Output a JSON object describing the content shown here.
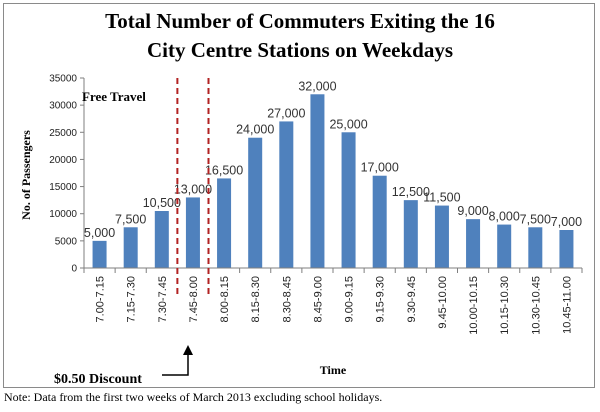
{
  "chart_data": {
    "type": "bar",
    "title_lines": [
      "Total Number of Commuters Exiting the 16",
      "City Centre Stations on Weekdays"
    ],
    "xlabel": "Time",
    "ylabel": "No. of Passengers",
    "ylim": [
      0,
      35000
    ],
    "yticks": [
      "0",
      "5000",
      "10000",
      "15000",
      "20000",
      "25000",
      "30000",
      "35000"
    ],
    "grid": false,
    "categories": [
      "7.00-7.15",
      "7.15-7.30",
      "7.30-7.45",
      "7.45-8.00",
      "8.00-8.15",
      "8.15-8.30",
      "8.30-8.45",
      "8.45-9.00",
      "9.00-9.15",
      "9.15-9.30",
      "9.30-9.45",
      "9.45-10.00",
      "10.00-10.15",
      "10.15-10.30",
      "10.30-10.45",
      "10.45-11.00"
    ],
    "values": [
      5000,
      7500,
      10500,
      13000,
      16500,
      24000,
      27000,
      32000,
      25000,
      17000,
      12500,
      11500,
      9000,
      8000,
      7500,
      7000
    ],
    "data_labels": [
      "5,000",
      "7,500",
      "10,500",
      "13,000",
      "16,500",
      "24,000",
      "27,000",
      "32,000",
      "25,000",
      "17,000",
      "12,500",
      "11,500",
      "9,000",
      "8,000",
      "7,500",
      "7,000"
    ],
    "bar_color": "#4f81bd",
    "annotations": {
      "free_travel": "Free Travel",
      "discount": "$0.50 Discount",
      "divider_color": "#b22222"
    }
  },
  "note": "Note: Data from the first two weeks of March 2013 excluding school holidays."
}
